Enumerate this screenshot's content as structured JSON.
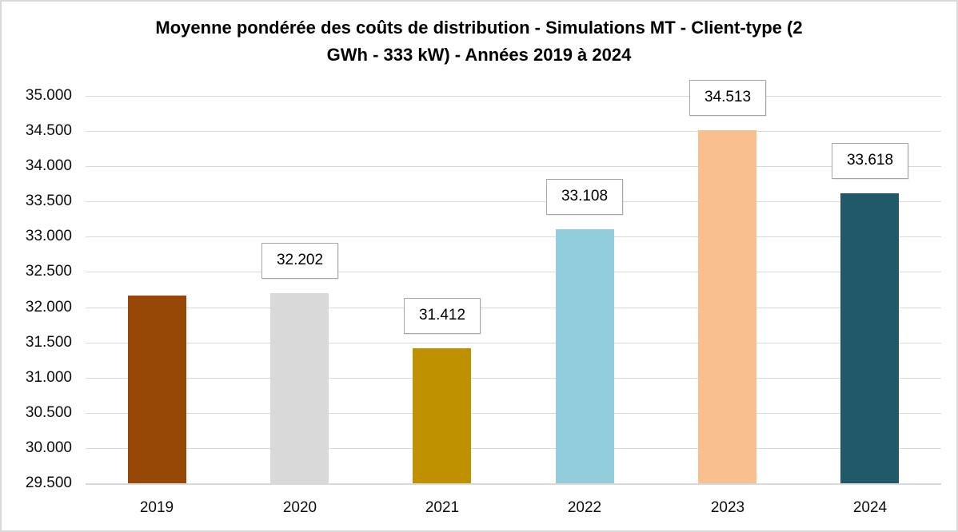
{
  "chart_data": {
    "type": "bar",
    "title": "Moyenne pondérée des coûts de distribution - Simulations MT - Client-type (2 GWh - 333 kW) - Années 2019 à 2024",
    "title_lines": [
      "Moyenne pondérée des coûts de distribution - Simulations MT - Client-type (2",
      "GWh - 333 kW) - Années 2019 à 2024"
    ],
    "categories": [
      "2019",
      "2020",
      "2021",
      "2022",
      "2023",
      "2024"
    ],
    "values": [
      32165,
      32202,
      31412,
      33108,
      34513,
      33618
    ],
    "data_labels": [
      null,
      "32.202",
      "31.412",
      "33.108",
      "34.513",
      "33.618"
    ],
    "bar_colors": [
      "#974806",
      "#d9d9d9",
      "#bf9000",
      "#92cddc",
      "#fabf8f",
      "#215968"
    ],
    "ylim": [
      29500,
      35000
    ],
    "ytick_step": 500,
    "yticks": [
      {
        "value": 35000,
        "label": "35.000"
      },
      {
        "value": 34500,
        "label": "34.500"
      },
      {
        "value": 34000,
        "label": "34.000"
      },
      {
        "value": 33500,
        "label": "33.500"
      },
      {
        "value": 33000,
        "label": "33.000"
      },
      {
        "value": 32500,
        "label": "32.500"
      },
      {
        "value": 32000,
        "label": "32.000"
      },
      {
        "value": 31500,
        "label": "31.500"
      },
      {
        "value": 31000,
        "label": "31.000"
      },
      {
        "value": 30500,
        "label": "30.500"
      },
      {
        "value": 30000,
        "label": "30.000"
      },
      {
        "value": 29500,
        "label": "29.500"
      }
    ],
    "xlabel": "",
    "ylabel": "",
    "grid": true,
    "legend": "none"
  },
  "colors": {
    "gridline": "#d9d9d9",
    "axis_line": "#d9d9d9",
    "label_box_border": "#a6a6a6",
    "label_box_fill": "#ffffff",
    "text": "#000000",
    "chart_border": "#d9d9d9",
    "background": "#ffffff"
  }
}
